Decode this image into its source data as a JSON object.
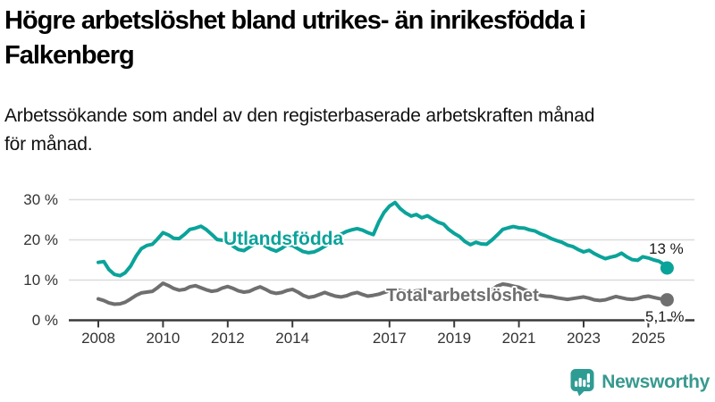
{
  "header": {
    "title_lines": [
      "Högre arbetslöshet bland utrikes- än inrikesfödda i",
      "Falkenberg"
    ],
    "subtitle_lines": [
      "Arbetssökande som andel av den registerbaserade arbetskraften månad",
      "för månad."
    ]
  },
  "branding": {
    "wordmark": "Newsworthy",
    "icon": "newsworthy-speech-bubble-bar-chart-icon",
    "icon_color": "#2f9c94",
    "wordmark_color": "#38998f"
  },
  "chart_data": {
    "type": "line",
    "title": "Högre arbetslöshet bland utrikes- än inrikesfödda i Falkenberg",
    "subtitle": "Arbetssökande som andel av den registerbaserade arbetskraften månad för månad.",
    "xlabel": "",
    "ylabel": "",
    "grid": "horizontal-only",
    "x_range": [
      2008.0,
      2025.58
    ],
    "ylim": [
      0,
      32
    ],
    "style": {
      "grid_color": "#dcdcdc",
      "axis_color": "#3a3a3a",
      "tick_label_color": "#333333"
    },
    "y_axis": {
      "ticks": [
        {
          "label": "0 %",
          "value": 0
        },
        {
          "label": "10 %",
          "value": 10
        },
        {
          "label": "20 %",
          "value": 20
        },
        {
          "label": "30 %",
          "value": 30
        }
      ]
    },
    "x_axis": {
      "ticks": [
        {
          "label": "2008",
          "year": 2008
        },
        {
          "label": "2010",
          "year": 2010
        },
        {
          "label": "2012",
          "year": 2012
        },
        {
          "label": "2014",
          "year": 2014
        },
        {
          "label": "2017",
          "year": 2017
        },
        {
          "label": "2019",
          "year": 2019
        },
        {
          "label": "2021",
          "year": 2021
        },
        {
          "label": "2023",
          "year": 2023
        },
        {
          "label": "2025",
          "year": 2025
        }
      ]
    },
    "series": [
      {
        "name": "Utlandsfödda",
        "color": "#0aa39a",
        "end_label": "13 %",
        "end_value": 13.0,
        "points": [
          [
            2008.0,
            14.4
          ],
          [
            2008.17,
            14.6
          ],
          [
            2008.33,
            12.6
          ],
          [
            2008.5,
            11.4
          ],
          [
            2008.67,
            11.1
          ],
          [
            2008.83,
            11.8
          ],
          [
            2009.0,
            13.5
          ],
          [
            2009.17,
            16.0
          ],
          [
            2009.33,
            17.8
          ],
          [
            2009.5,
            18.6
          ],
          [
            2009.67,
            18.9
          ],
          [
            2009.83,
            20.2
          ],
          [
            2010.0,
            21.8
          ],
          [
            2010.17,
            21.2
          ],
          [
            2010.33,
            20.4
          ],
          [
            2010.5,
            20.3
          ],
          [
            2010.67,
            21.4
          ],
          [
            2010.83,
            22.6
          ],
          [
            2011.0,
            22.9
          ],
          [
            2011.17,
            23.4
          ],
          [
            2011.33,
            22.6
          ],
          [
            2011.5,
            21.4
          ],
          [
            2011.67,
            20.1
          ],
          [
            2011.83,
            19.9
          ],
          [
            2012.0,
            19.8
          ],
          [
            2012.17,
            18.4
          ],
          [
            2012.33,
            17.6
          ],
          [
            2012.5,
            17.3
          ],
          [
            2012.67,
            18.2
          ],
          [
            2012.83,
            19.0
          ],
          [
            2013.0,
            19.3
          ],
          [
            2013.17,
            18.4
          ],
          [
            2013.33,
            17.7
          ],
          [
            2013.5,
            17.2
          ],
          [
            2013.67,
            17.9
          ],
          [
            2013.83,
            18.8
          ],
          [
            2014.0,
            18.6
          ],
          [
            2014.17,
            17.8
          ],
          [
            2014.33,
            17.1
          ],
          [
            2014.5,
            16.8
          ],
          [
            2014.67,
            17.0
          ],
          [
            2014.83,
            17.6
          ],
          [
            2015.0,
            18.4
          ],
          [
            2015.17,
            19.3
          ],
          [
            2015.33,
            20.4
          ],
          [
            2015.5,
            21.4
          ],
          [
            2015.67,
            22.1
          ],
          [
            2015.83,
            22.5
          ],
          [
            2016.0,
            22.8
          ],
          [
            2016.17,
            22.4
          ],
          [
            2016.33,
            21.8
          ],
          [
            2016.5,
            21.3
          ],
          [
            2016.67,
            24.5
          ],
          [
            2016.83,
            26.8
          ],
          [
            2017.0,
            28.4
          ],
          [
            2017.17,
            29.3
          ],
          [
            2017.33,
            27.8
          ],
          [
            2017.5,
            26.7
          ],
          [
            2017.67,
            25.9
          ],
          [
            2017.83,
            26.3
          ],
          [
            2018.0,
            25.5
          ],
          [
            2018.17,
            26.0
          ],
          [
            2018.33,
            25.2
          ],
          [
            2018.5,
            24.4
          ],
          [
            2018.67,
            23.9
          ],
          [
            2018.83,
            22.6
          ],
          [
            2019.0,
            21.6
          ],
          [
            2019.17,
            20.8
          ],
          [
            2019.33,
            19.6
          ],
          [
            2019.5,
            18.8
          ],
          [
            2019.67,
            19.4
          ],
          [
            2019.83,
            19.0
          ],
          [
            2020.0,
            18.9
          ],
          [
            2020.17,
            20.0
          ],
          [
            2020.33,
            21.2
          ],
          [
            2020.5,
            22.6
          ],
          [
            2020.67,
            23.0
          ],
          [
            2020.83,
            23.3
          ],
          [
            2021.0,
            23.0
          ],
          [
            2021.17,
            22.9
          ],
          [
            2021.33,
            22.5
          ],
          [
            2021.5,
            22.2
          ],
          [
            2021.67,
            21.5
          ],
          [
            2021.83,
            21.0
          ],
          [
            2022.0,
            20.3
          ],
          [
            2022.17,
            19.8
          ],
          [
            2022.33,
            19.4
          ],
          [
            2022.5,
            18.7
          ],
          [
            2022.67,
            18.3
          ],
          [
            2022.83,
            17.6
          ],
          [
            2023.0,
            17.0
          ],
          [
            2023.17,
            17.4
          ],
          [
            2023.33,
            16.6
          ],
          [
            2023.5,
            15.9
          ],
          [
            2023.67,
            15.3
          ],
          [
            2023.83,
            15.7
          ],
          [
            2024.0,
            16.0
          ],
          [
            2024.17,
            16.7
          ],
          [
            2024.33,
            15.8
          ],
          [
            2024.5,
            15.1
          ],
          [
            2024.67,
            14.9
          ],
          [
            2024.83,
            15.8
          ],
          [
            2025.0,
            15.5
          ],
          [
            2025.17,
            15.0
          ],
          [
            2025.33,
            14.7
          ],
          [
            2025.5,
            13.8
          ],
          [
            2025.58,
            13.0
          ]
        ]
      },
      {
        "name": "Total arbetslöshet",
        "color": "#6f6f6f",
        "end_label": "5,1 %",
        "end_value": 5.1,
        "points": [
          [
            2008.0,
            5.3
          ],
          [
            2008.17,
            4.9
          ],
          [
            2008.33,
            4.3
          ],
          [
            2008.5,
            4.0
          ],
          [
            2008.67,
            4.1
          ],
          [
            2008.83,
            4.5
          ],
          [
            2009.0,
            5.3
          ],
          [
            2009.17,
            6.2
          ],
          [
            2009.33,
            6.8
          ],
          [
            2009.5,
            7.0
          ],
          [
            2009.67,
            7.2
          ],
          [
            2009.83,
            8.1
          ],
          [
            2010.0,
            9.2
          ],
          [
            2010.17,
            8.6
          ],
          [
            2010.33,
            7.9
          ],
          [
            2010.5,
            7.5
          ],
          [
            2010.67,
            7.7
          ],
          [
            2010.83,
            8.3
          ],
          [
            2011.0,
            8.6
          ],
          [
            2011.17,
            8.1
          ],
          [
            2011.33,
            7.6
          ],
          [
            2011.5,
            7.2
          ],
          [
            2011.67,
            7.4
          ],
          [
            2011.83,
            8.0
          ],
          [
            2012.0,
            8.4
          ],
          [
            2012.17,
            7.9
          ],
          [
            2012.33,
            7.3
          ],
          [
            2012.5,
            7.0
          ],
          [
            2012.67,
            7.2
          ],
          [
            2012.83,
            7.8
          ],
          [
            2013.0,
            8.3
          ],
          [
            2013.17,
            7.7
          ],
          [
            2013.33,
            7.0
          ],
          [
            2013.5,
            6.7
          ],
          [
            2013.67,
            6.9
          ],
          [
            2013.83,
            7.4
          ],
          [
            2014.0,
            7.7
          ],
          [
            2014.17,
            7.0
          ],
          [
            2014.33,
            6.2
          ],
          [
            2014.5,
            5.7
          ],
          [
            2014.67,
            5.9
          ],
          [
            2014.83,
            6.4
          ],
          [
            2015.0,
            6.9
          ],
          [
            2015.17,
            6.4
          ],
          [
            2015.33,
            6.0
          ],
          [
            2015.5,
            5.8
          ],
          [
            2015.67,
            6.1
          ],
          [
            2015.83,
            6.6
          ],
          [
            2016.0,
            6.9
          ],
          [
            2016.17,
            6.4
          ],
          [
            2016.33,
            6.0
          ],
          [
            2016.5,
            6.2
          ],
          [
            2016.67,
            6.5
          ],
          [
            2016.83,
            6.9
          ],
          [
            2017.0,
            7.3
          ],
          [
            2017.17,
            7.6
          ],
          [
            2017.33,
            7.4
          ],
          [
            2017.5,
            7.1
          ],
          [
            2017.67,
            7.0
          ],
          [
            2017.83,
            7.3
          ],
          [
            2018.0,
            7.4
          ],
          [
            2018.17,
            7.1
          ],
          [
            2018.33,
            6.8
          ],
          [
            2018.5,
            6.6
          ],
          [
            2018.67,
            6.5
          ],
          [
            2018.83,
            6.7
          ],
          [
            2019.0,
            6.8
          ],
          [
            2019.17,
            6.5
          ],
          [
            2019.33,
            6.3
          ],
          [
            2019.5,
            6.2
          ],
          [
            2019.67,
            6.4
          ],
          [
            2019.83,
            6.6
          ],
          [
            2020.0,
            6.8
          ],
          [
            2020.17,
            7.6
          ],
          [
            2020.33,
            8.5
          ],
          [
            2020.5,
            9.0
          ],
          [
            2020.67,
            8.8
          ],
          [
            2020.83,
            8.5
          ],
          [
            2021.0,
            8.2
          ],
          [
            2021.17,
            7.6
          ],
          [
            2021.33,
            7.1
          ],
          [
            2021.5,
            6.6
          ],
          [
            2021.67,
            6.2
          ],
          [
            2021.83,
            6.0
          ],
          [
            2022.0,
            5.9
          ],
          [
            2022.17,
            5.6
          ],
          [
            2022.33,
            5.4
          ],
          [
            2022.5,
            5.2
          ],
          [
            2022.67,
            5.4
          ],
          [
            2022.83,
            5.6
          ],
          [
            2023.0,
            5.8
          ],
          [
            2023.17,
            5.5
          ],
          [
            2023.33,
            5.1
          ],
          [
            2023.5,
            4.9
          ],
          [
            2023.67,
            5.1
          ],
          [
            2023.83,
            5.5
          ],
          [
            2024.0,
            5.9
          ],
          [
            2024.17,
            5.6
          ],
          [
            2024.33,
            5.3
          ],
          [
            2024.5,
            5.2
          ],
          [
            2024.67,
            5.4
          ],
          [
            2024.83,
            5.8
          ],
          [
            2025.0,
            6.0
          ],
          [
            2025.17,
            5.7
          ],
          [
            2025.33,
            5.4
          ],
          [
            2025.5,
            5.2
          ],
          [
            2025.58,
            5.1
          ]
        ]
      }
    ],
    "legend_position": "inline-labels-on-lines"
  }
}
